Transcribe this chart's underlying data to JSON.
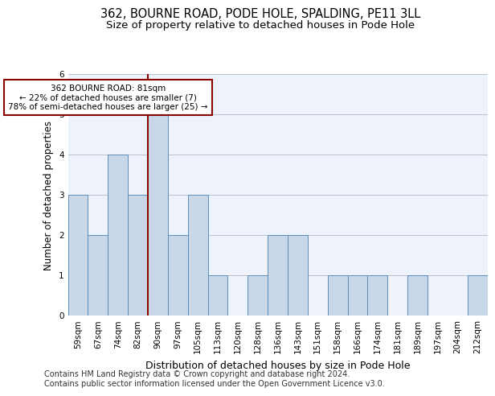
{
  "title1": "362, BOURNE ROAD, PODE HOLE, SPALDING, PE11 3LL",
  "title2": "Size of property relative to detached houses in Pode Hole",
  "xlabel": "Distribution of detached houses by size in Pode Hole",
  "ylabel": "Number of detached properties",
  "footer1": "Contains HM Land Registry data © Crown copyright and database right 2024.",
  "footer2": "Contains public sector information licensed under the Open Government Licence v3.0.",
  "categories": [
    "59sqm",
    "67sqm",
    "74sqm",
    "82sqm",
    "90sqm",
    "97sqm",
    "105sqm",
    "113sqm",
    "120sqm",
    "128sqm",
    "136sqm",
    "143sqm",
    "151sqm",
    "158sqm",
    "166sqm",
    "174sqm",
    "181sqm",
    "189sqm",
    "197sqm",
    "204sqm",
    "212sqm"
  ],
  "values": [
    3,
    2,
    4,
    3,
    5,
    2,
    3,
    1,
    0,
    1,
    2,
    2,
    0,
    1,
    1,
    1,
    0,
    1,
    0,
    0,
    1
  ],
  "bar_color": "#c8d8e8",
  "bar_edge_color": "#5b8db8",
  "subject_line_color": "#8b0000",
  "annotation_text": "362 BOURNE ROAD: 81sqm\n← 22% of detached houses are smaller (7)\n78% of semi-detached houses are larger (25) →",
  "annotation_box_color": "#8b0000",
  "ylim": [
    0,
    6
  ],
  "yticks": [
    0,
    1,
    2,
    3,
    4,
    5,
    6
  ],
  "grid_color": "#b0b8cc",
  "bg_color": "#eef2fa",
  "title_fontsize": 10.5,
  "subtitle_fontsize": 9.5,
  "axis_label_fontsize": 8.5,
  "tick_fontsize": 7.5,
  "footer_fontsize": 7
}
